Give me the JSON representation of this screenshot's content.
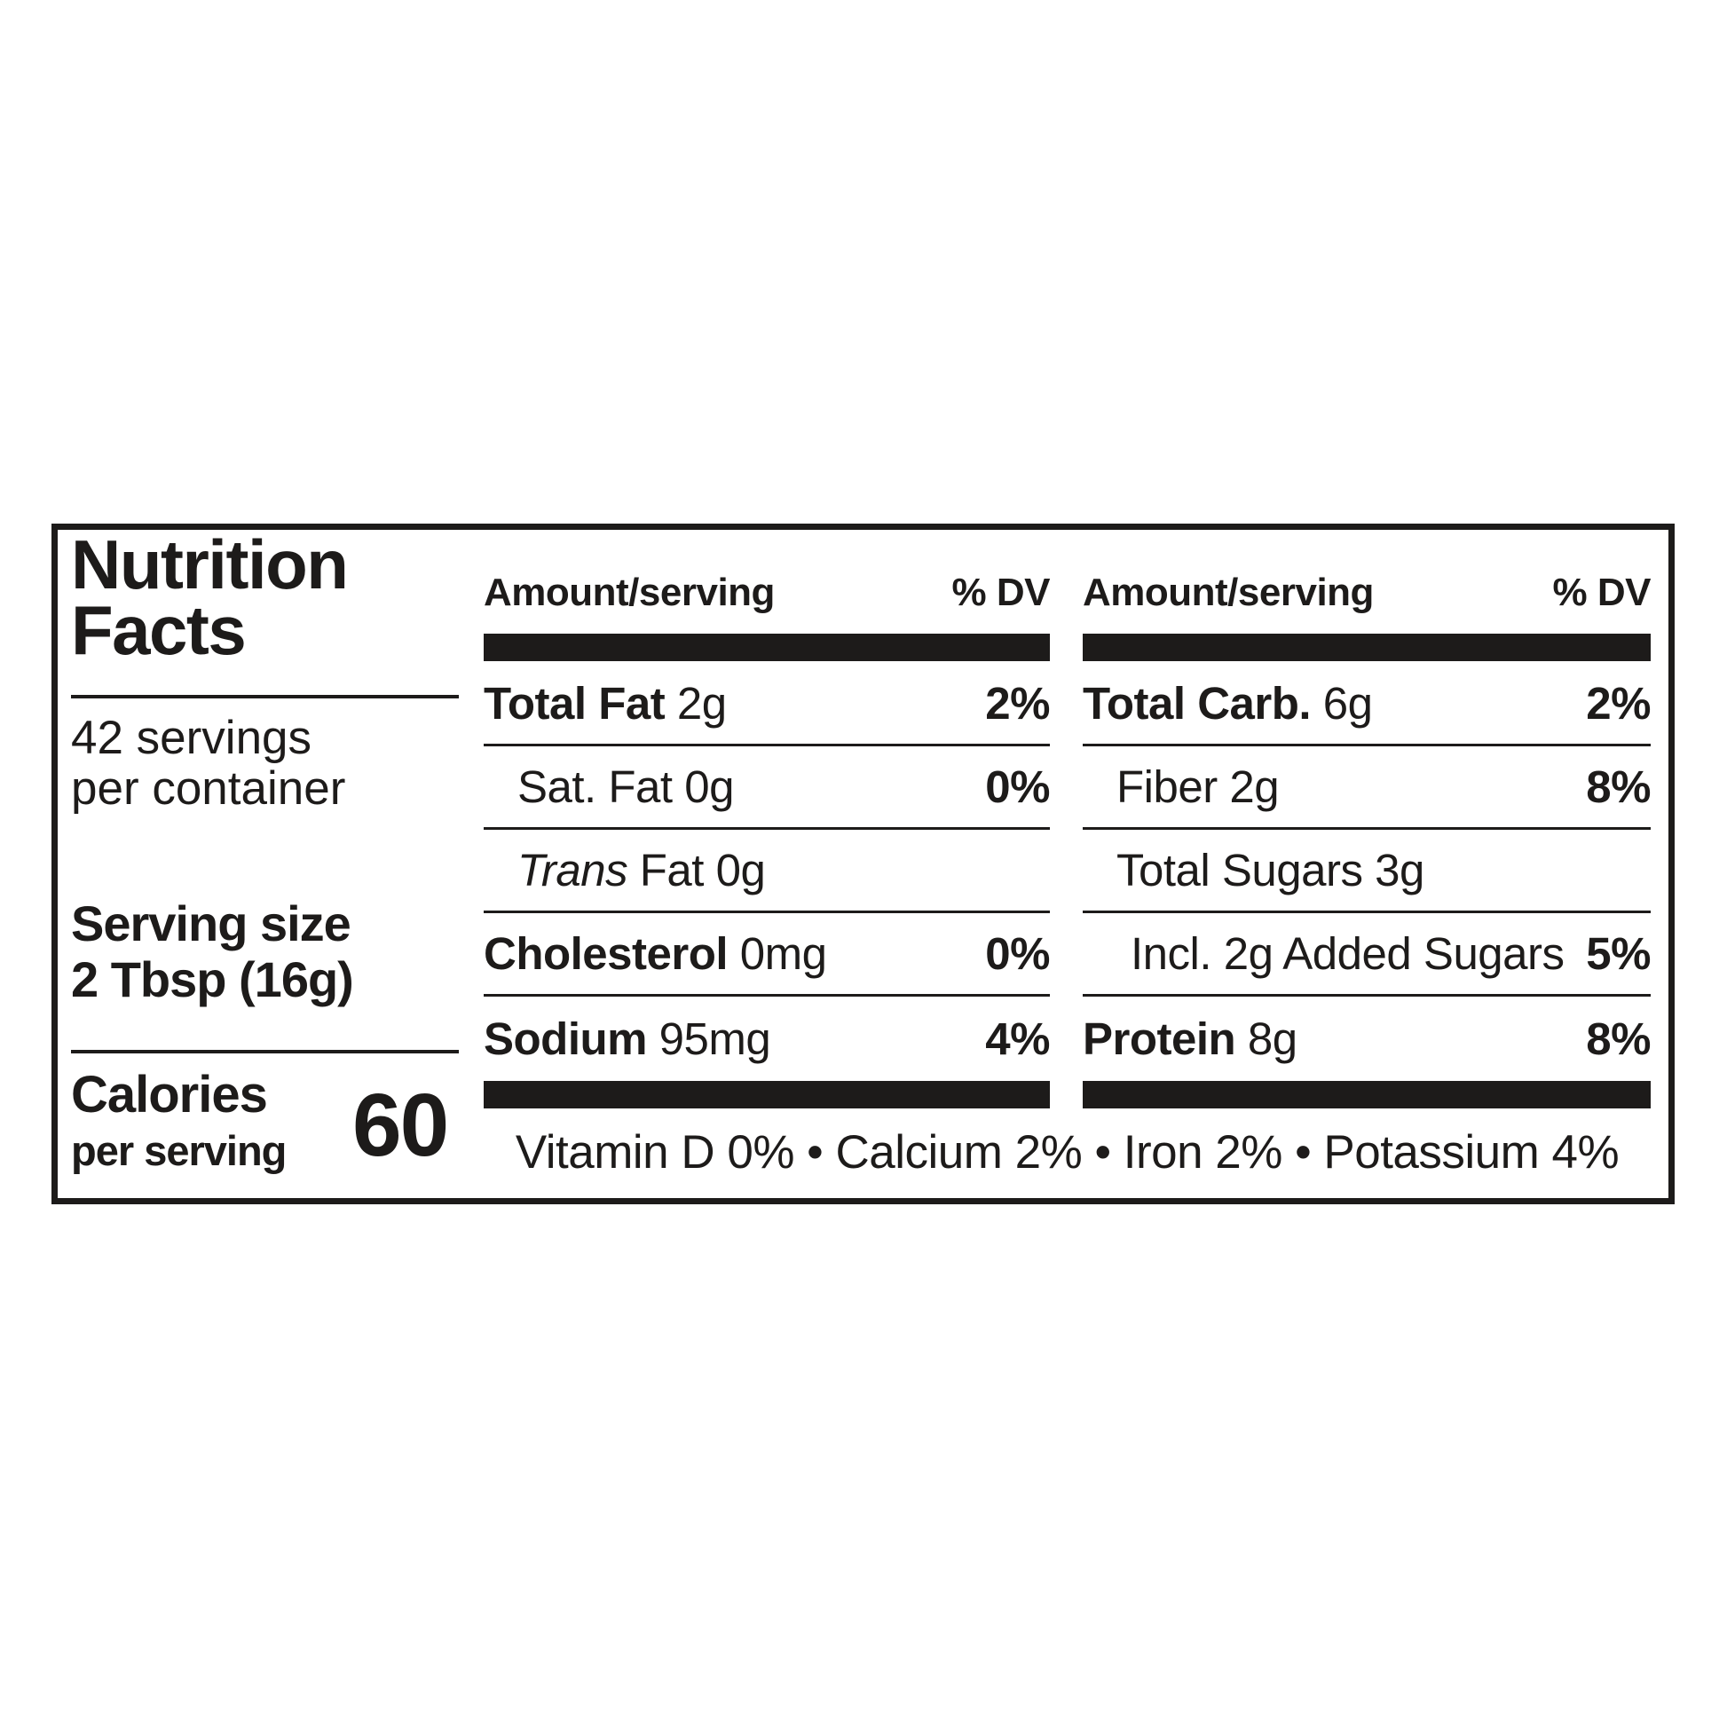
{
  "label": {
    "title": {
      "line1": "Nutrition",
      "line2": "Facts"
    },
    "servings": {
      "line1": "42 servings",
      "line2": "per container"
    },
    "serving_size": {
      "label": "Serving size",
      "value": "2 Tbsp (16g)"
    },
    "calories": {
      "label": "Calories",
      "sublabel": "per serving",
      "value": "60"
    },
    "columns": [
      {
        "header_amount": "Amount/serving",
        "header_dv": "% DV",
        "rows": [
          {
            "bold": "Total Fat",
            "plain": "2g",
            "dv": "2%",
            "indent": 0
          },
          {
            "plain": "Sat. Fat 0g",
            "dv": "0%",
            "indent": 1
          },
          {
            "italic": "Trans",
            "plain": "Fat 0g",
            "dv": "",
            "indent": 1
          },
          {
            "bold": "Cholesterol",
            "plain": "0mg",
            "dv": "0%",
            "indent": 0
          },
          {
            "bold": "Sodium",
            "plain": "95mg",
            "dv": "4%",
            "indent": 0
          }
        ]
      },
      {
        "header_amount": "Amount/serving",
        "header_dv": "% DV",
        "rows": [
          {
            "bold": "Total Carb.",
            "plain": "6g",
            "dv": "2%",
            "indent": 0
          },
          {
            "plain": "Fiber 2g",
            "dv": "8%",
            "indent": 1
          },
          {
            "plain": "Total Sugars 3g",
            "dv": "",
            "indent": 1
          },
          {
            "plain": "Incl. 2g Added Sugars",
            "dv": "5%",
            "indent": 2
          },
          {
            "bold": "Protein",
            "plain": "8g",
            "dv": "8%",
            "indent": 0
          }
        ]
      }
    ],
    "micronutrients": "Vitamin D 0% • Calcium 2% • Iron 2% • Potassium 4%",
    "colors": {
      "ink": "#1d1b1a",
      "background": "#ffffff"
    }
  }
}
